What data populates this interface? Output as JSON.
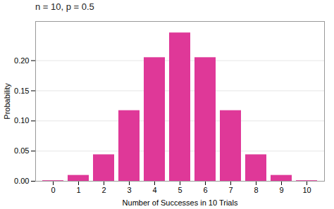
{
  "chart_data": {
    "type": "bar",
    "title": "n = 10, p = 0.5",
    "categories": [
      "0",
      "1",
      "2",
      "3",
      "4",
      "5",
      "6",
      "7",
      "8",
      "9",
      "10"
    ],
    "values": [
      0.0009765625,
      0.009765625,
      0.04394531,
      0.1171875,
      0.20507813,
      0.24609375,
      0.20507813,
      0.1171875,
      0.04394531,
      0.009765625,
      0.0009765625
    ],
    "color": "#df3898",
    "xlabel": "Number of Successes in 10 Trials",
    "ylabel": "Probability",
    "ylim": [
      0,
      0.265
    ],
    "yticks": [
      {
        "value": 0,
        "label": "0.00"
      },
      {
        "value": 0.05,
        "label": "0.05"
      },
      {
        "value": 0.1,
        "label": "0.10"
      },
      {
        "value": 0.15,
        "label": "0.15"
      },
      {
        "value": 0.2,
        "label": "0.20"
      }
    ],
    "grid": true
  }
}
